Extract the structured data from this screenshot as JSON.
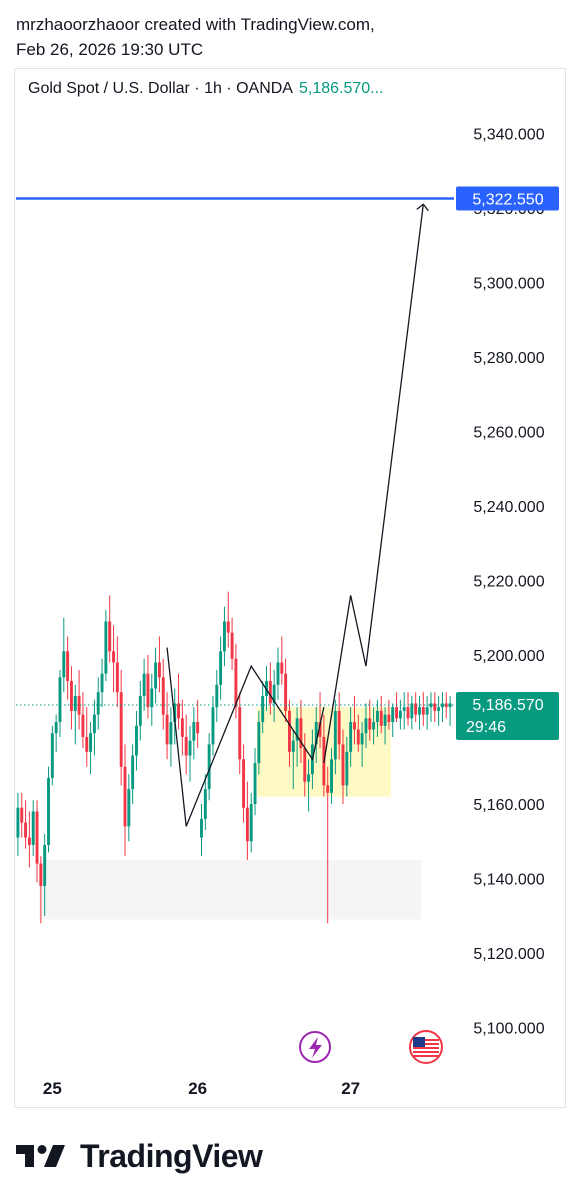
{
  "header": {
    "line1": "mrzhaoorzhaoor created with TradingView.com,",
    "line2": "Feb 26, 2026 19:30 UTC"
  },
  "legend": {
    "symbol": "Gold Spot / U.S. Dollar · 1h · OANDA",
    "price": "5,186.570..."
  },
  "chart_data": {
    "type": "candlestick",
    "title": "Gold Spot / U.S. Dollar · 1h · OANDA",
    "y_ticks": [
      5340,
      5320,
      5300,
      5280,
      5260,
      5240,
      5220,
      5200,
      5180,
      5160,
      5140,
      5120,
      5100
    ],
    "y_tick_labels": [
      "5,340.000",
      "5,320.000",
      "5,300.000",
      "5,280.000",
      "5,260.000",
      "5,240.000",
      "5,220.000",
      "5,200.000",
      "5,180.000",
      "5,160.000",
      "5,140.000",
      "5,120.000",
      "5,100.000"
    ],
    "x_labels": [
      {
        "label": "25",
        "bar": 9
      },
      {
        "label": "26",
        "bar": 47
      },
      {
        "label": "27",
        "bar": 87
      }
    ],
    "ylim": [
      5091,
      5352
    ],
    "bar_count": 114,
    "candles": [
      [
        5151,
        5163,
        5146,
        5159
      ],
      [
        5159,
        5163,
        5151,
        5155
      ],
      [
        5155,
        5161,
        5148,
        5151
      ],
      [
        5151,
        5158,
        5143,
        5149
      ],
      [
        5149,
        5161,
        5146,
        5158
      ],
      [
        5158,
        5161,
        5139,
        5144
      ],
      [
        5144,
        5146,
        5128,
        5138
      ],
      [
        5138,
        5152,
        5130,
        5149
      ],
      [
        5149,
        5170,
        5147,
        5167
      ],
      [
        5167,
        5181,
        5165,
        5179
      ],
      [
        5179,
        5184,
        5174,
        5182
      ],
      [
        5182,
        5196,
        5178,
        5194
      ],
      [
        5194,
        5210,
        5190,
        5201
      ],
      [
        5201,
        5205,
        5188,
        5193
      ],
      [
        5193,
        5197,
        5180,
        5185
      ],
      [
        5185,
        5192,
        5176,
        5189
      ],
      [
        5189,
        5196,
        5180,
        5184
      ],
      [
        5184,
        5190,
        5175,
        5178
      ],
      [
        5178,
        5186,
        5170,
        5174
      ],
      [
        5174,
        5182,
        5168,
        5179
      ],
      [
        5179,
        5188,
        5173,
        5184
      ],
      [
        5184,
        5194,
        5180,
        5190
      ],
      [
        5190,
        5199,
        5186,
        5195
      ],
      [
        5195,
        5212,
        5193,
        5209
      ],
      [
        5209,
        5216,
        5198,
        5201
      ],
      [
        5201,
        5208,
        5190,
        5198
      ],
      [
        5198,
        5205,
        5186,
        5190
      ],
      [
        5190,
        5196,
        5165,
        5170
      ],
      [
        5170,
        5176,
        5146,
        5154
      ],
      [
        5154,
        5168,
        5150,
        5164
      ],
      [
        5164,
        5176,
        5160,
        5173
      ],
      [
        5173,
        5185,
        5169,
        5181
      ],
      [
        5181,
        5193,
        5177,
        5189
      ],
      [
        5189,
        5199,
        5185,
        5195
      ],
      [
        5195,
        5200,
        5183,
        5186
      ],
      [
        5186,
        5195,
        5181,
        5191
      ],
      [
        5191,
        5202,
        5187,
        5198
      ],
      [
        5198,
        5205,
        5190,
        5194
      ],
      [
        5194,
        5199,
        5180,
        5184
      ],
      [
        5184,
        5190,
        5172,
        5176
      ],
      [
        5176,
        5186,
        5170,
        5182
      ],
      [
        5182,
        5191,
        5176,
        5187
      ],
      [
        5187,
        5195,
        5180,
        5183
      ],
      [
        5183,
        5188,
        5173,
        5178
      ],
      [
        5178,
        5184,
        5168,
        5173
      ],
      [
        5173,
        5181,
        5166,
        5177
      ],
      [
        5177,
        5186,
        5172,
        5182
      ],
      [
        5182,
        5188,
        5175,
        5179
      ],
      [
        5151,
        5160,
        5146,
        5156
      ],
      [
        5156,
        5168,
        5153,
        5164
      ],
      [
        5164,
        5179,
        5161,
        5176
      ],
      [
        5176,
        5189,
        5173,
        5186
      ],
      [
        5186,
        5196,
        5182,
        5192
      ],
      [
        5192,
        5205,
        5188,
        5201
      ],
      [
        5201,
        5213,
        5197,
        5209
      ],
      [
        5209,
        5217,
        5202,
        5206
      ],
      [
        5206,
        5210,
        5196,
        5199
      ],
      [
        5199,
        5203,
        5183,
        5186
      ],
      [
        5186,
        5190,
        5168,
        5172
      ],
      [
        5172,
        5176,
        5155,
        5159
      ],
      [
        5159,
        5166,
        5145,
        5150
      ],
      [
        5150,
        5163,
        5147,
        5160
      ],
      [
        5160,
        5175,
        5157,
        5171
      ],
      [
        5171,
        5185,
        5168,
        5182
      ],
      [
        5182,
        5193,
        5179,
        5189
      ],
      [
        5189,
        5197,
        5185,
        5193
      ],
      [
        5193,
        5198,
        5184,
        5187
      ],
      [
        5187,
        5196,
        5182,
        5192
      ],
      [
        5192,
        5202,
        5188,
        5198
      ],
      [
        5198,
        5205,
        5192,
        5195
      ],
      [
        5195,
        5199,
        5182,
        5185
      ],
      [
        5185,
        5188,
        5170,
        5174
      ],
      [
        5174,
        5180,
        5164,
        5177
      ],
      [
        5177,
        5186,
        5170,
        5183
      ],
      [
        5183,
        5188,
        5171,
        5175
      ],
      [
        5175,
        5179,
        5162,
        5166
      ],
      [
        5166,
        5172,
        5158,
        5168
      ],
      [
        5168,
        5180,
        5164,
        5176
      ],
      [
        5176,
        5186,
        5171,
        5182
      ],
      [
        5182,
        5190,
        5175,
        5178
      ],
      [
        5178,
        5184,
        5162,
        5165
      ],
      [
        5165,
        5170,
        5128,
        5163
      ],
      [
        5163,
        5175,
        5160,
        5172
      ],
      [
        5172,
        5188,
        5168,
        5185
      ],
      [
        5185,
        5190,
        5172,
        5176
      ],
      [
        5176,
        5180,
        5160,
        5165
      ],
      [
        5165,
        5178,
        5162,
        5174
      ],
      [
        5174,
        5186,
        5170,
        5182
      ],
      [
        5182,
        5189,
        5176,
        5180
      ],
      [
        5180,
        5184,
        5174,
        5176
      ],
      [
        5176,
        5182,
        5170,
        5179
      ],
      [
        5179,
        5187,
        5175,
        5183
      ],
      [
        5183,
        5188,
        5177,
        5180
      ],
      [
        5180,
        5186,
        5176,
        5182
      ],
      [
        5182,
        5188,
        5178,
        5185
      ],
      [
        5185,
        5189,
        5179,
        5181
      ],
      [
        5181,
        5186,
        5176,
        5184
      ],
      [
        5184,
        5188,
        5180,
        5182
      ],
      [
        5182,
        5187,
        5178,
        5186
      ],
      [
        5186,
        5190,
        5182,
        5183
      ],
      [
        5183,
        5188,
        5180,
        5185
      ],
      [
        5185,
        5190,
        5180,
        5186
      ],
      [
        5186,
        5190,
        5181,
        5183
      ],
      [
        5183,
        5189,
        5180,
        5187
      ],
      [
        5187,
        5190,
        5182,
        5184
      ],
      [
        5184,
        5189,
        5180,
        5186
      ],
      [
        5186,
        5190,
        5181,
        5184
      ],
      [
        5184,
        5189,
        5180,
        5186
      ],
      [
        5186,
        5190,
        5182,
        5187
      ],
      [
        5187,
        5190,
        5182,
        5185
      ],
      [
        5185,
        5189,
        5181,
        5186
      ],
      [
        5186,
        5190,
        5182,
        5187
      ],
      [
        5187,
        5190,
        5183,
        5186
      ],
      [
        5186,
        5189,
        5181,
        5187
      ]
    ],
    "horizontal_line": {
      "price": 5322.55,
      "label": "5,322.550",
      "color": "#2962ff"
    },
    "last_price": {
      "price": 5186.57,
      "label": "5,186.570",
      "countdown": "29:46",
      "color": "#089981"
    },
    "zones": [
      {
        "kind": "highlight",
        "bar_from": 63,
        "bar_to": 98,
        "price_top": 5186,
        "price_bottom": 5162,
        "color": "#fff9c4"
      },
      {
        "kind": "shade",
        "bar_from": 6,
        "bar_to": 106,
        "price_top": 5145,
        "price_bottom": 5129,
        "color": "#f5f5f5"
      }
    ],
    "zigzag": [
      [
        39,
        5202
      ],
      [
        44,
        5154
      ],
      [
        61,
        5197
      ],
      [
        77,
        5172
      ],
      [
        80,
        5186
      ]
    ],
    "projection": [
      [
        80,
        5171
      ],
      [
        87,
        5216
      ],
      [
        91,
        5197
      ],
      [
        106,
        5321
      ]
    ],
    "event_icons": [
      "lightning-icon",
      "us-flag-icon"
    ]
  },
  "colors": {
    "up": "#089981",
    "down": "#f23645",
    "text": "#131722",
    "grid": "#e0e3eb"
  },
  "brand": {
    "name": "TradingView"
  }
}
